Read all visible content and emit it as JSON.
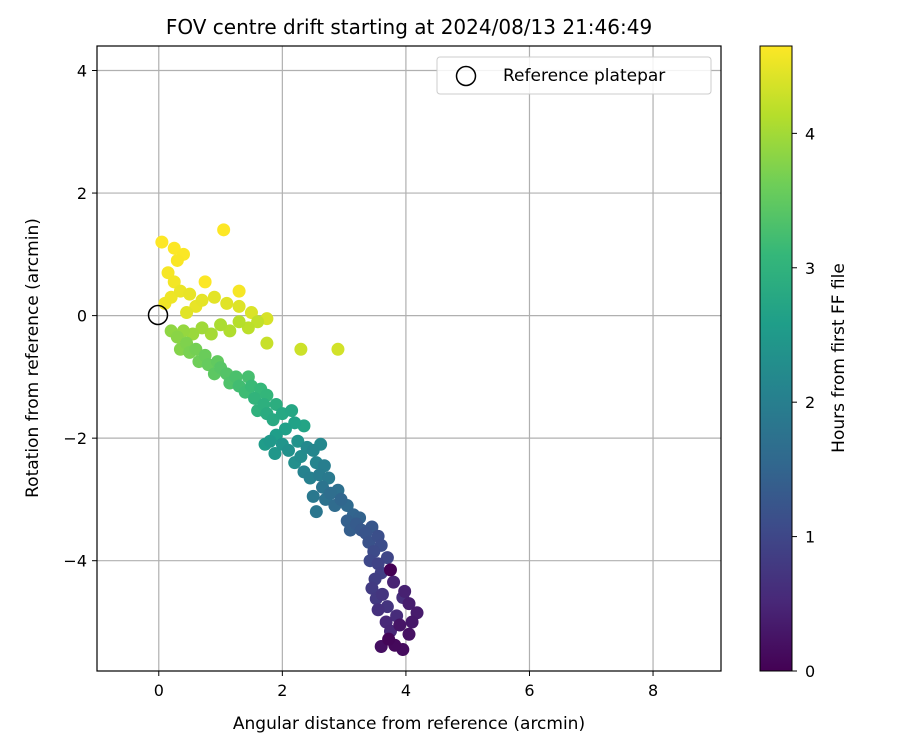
{
  "chart_data": {
    "type": "scatter",
    "title": "FOV centre drift starting at 2024/08/13 21:46:49",
    "xlabel": "Angular distance from reference (arcmin)",
    "ylabel": "Rotation from reference (arcmin)",
    "xlim": [
      -1.0,
      9.1
    ],
    "ylim": [
      -5.8,
      4.4
    ],
    "xticks": [
      0,
      2,
      4,
      6,
      8
    ],
    "xtick_labels": [
      "0",
      "2",
      "4",
      "6",
      "8"
    ],
    "yticks": [
      -4,
      -2,
      0,
      2,
      4
    ],
    "ytick_labels": [
      "−4",
      "−2",
      "0",
      "2",
      "4"
    ],
    "grid": true,
    "legend": {
      "placement": "top-right",
      "entries": [
        "Reference platepar"
      ]
    },
    "reference_point": {
      "name": "Reference platepar",
      "x": 0,
      "y": 0
    },
    "colorbar": {
      "label": "Hours from first FF file",
      "range": [
        0,
        4.65
      ],
      "ticks": [
        0,
        1,
        2,
        3,
        4
      ],
      "tick_labels": [
        "0",
        "1",
        "2",
        "3",
        "4"
      ],
      "colormap": "viridis"
    },
    "colormap_stops": [
      "#440154",
      "#482878",
      "#3e4989",
      "#31688e",
      "#26828e",
      "#1f9e89",
      "#35b779",
      "#6ece58",
      "#b5de2b",
      "#fde725"
    ],
    "points": [
      [
        3.75,
        -4.15,
        0.0
      ],
      [
        3.72,
        -5.28,
        0.06
      ],
      [
        3.82,
        -5.38,
        0.1
      ],
      [
        3.95,
        -5.45,
        0.14
      ],
      [
        3.6,
        -5.4,
        0.18
      ],
      [
        4.05,
        -5.2,
        0.22
      ],
      [
        3.9,
        -5.05,
        0.26
      ],
      [
        4.1,
        -5.0,
        0.3
      ],
      [
        4.18,
        -4.85,
        0.34
      ],
      [
        4.05,
        -4.7,
        0.38
      ],
      [
        3.98,
        -4.5,
        0.42
      ],
      [
        3.8,
        -4.35,
        0.46
      ],
      [
        3.75,
        -5.15,
        0.5
      ],
      [
        3.68,
        -5.0,
        0.54
      ],
      [
        3.85,
        -4.9,
        0.58
      ],
      [
        3.95,
        -4.6,
        0.62
      ],
      [
        3.55,
        -4.8,
        0.66
      ],
      [
        3.7,
        -4.75,
        0.7
      ],
      [
        3.62,
        -4.55,
        0.74
      ],
      [
        3.52,
        -4.62,
        0.78
      ],
      [
        3.45,
        -4.45,
        0.82
      ],
      [
        3.5,
        -4.3,
        0.86
      ],
      [
        3.6,
        -4.2,
        0.9
      ],
      [
        3.55,
        -4.05,
        0.94
      ],
      [
        3.7,
        -3.95,
        0.98
      ],
      [
        3.42,
        -4.0,
        1.02
      ],
      [
        3.48,
        -3.85,
        1.06
      ],
      [
        3.6,
        -3.75,
        1.1
      ],
      [
        3.55,
        -3.6,
        1.14
      ],
      [
        3.4,
        -3.7,
        1.18
      ],
      [
        3.35,
        -3.55,
        1.22
      ],
      [
        3.45,
        -3.45,
        1.26
      ],
      [
        3.28,
        -3.5,
        1.3
      ],
      [
        3.2,
        -3.4,
        1.34
      ],
      [
        3.1,
        -3.5,
        1.38
      ],
      [
        3.05,
        -3.35,
        1.42
      ],
      [
        3.25,
        -3.3,
        1.46
      ],
      [
        3.15,
        -3.25,
        1.5
      ],
      [
        2.95,
        -3.0,
        1.54
      ],
      [
        3.05,
        -3.1,
        1.58
      ],
      [
        2.85,
        -3.1,
        1.62
      ],
      [
        2.78,
        -2.9,
        1.66
      ],
      [
        2.9,
        -2.85,
        1.7
      ],
      [
        2.7,
        -3.0,
        1.74
      ],
      [
        2.65,
        -2.8,
        1.78
      ],
      [
        2.55,
        -3.2,
        1.82
      ],
      [
        2.5,
        -2.95,
        1.86
      ],
      [
        2.75,
        -2.65,
        1.9
      ],
      [
        2.6,
        -2.6,
        1.94
      ],
      [
        2.68,
        -2.45,
        1.98
      ],
      [
        2.45,
        -2.65,
        2.02
      ],
      [
        2.35,
        -2.55,
        2.06
      ],
      [
        2.55,
        -2.4,
        2.1
      ],
      [
        2.5,
        -2.2,
        2.14
      ],
      [
        2.62,
        -2.1,
        2.18
      ],
      [
        2.4,
        -2.15,
        2.22
      ],
      [
        2.3,
        -2.3,
        2.26
      ],
      [
        2.2,
        -2.4,
        2.3
      ],
      [
        2.1,
        -2.2,
        2.34
      ],
      [
        2.25,
        -2.05,
        2.38
      ],
      [
        2.0,
        -2.1,
        2.42
      ],
      [
        1.88,
        -2.25,
        2.46
      ],
      [
        1.8,
        -2.05,
        2.5
      ],
      [
        1.72,
        -2.1,
        2.54
      ],
      [
        1.9,
        -1.95,
        2.58
      ],
      [
        2.05,
        -1.85,
        2.62
      ],
      [
        2.2,
        -1.75,
        2.66
      ],
      [
        2.35,
        -1.8,
        2.7
      ],
      [
        2.15,
        -1.55,
        2.74
      ],
      [
        2.0,
        -1.6,
        2.78
      ],
      [
        1.85,
        -1.7,
        2.82
      ],
      [
        1.75,
        -1.6,
        2.86
      ],
      [
        1.9,
        -1.45,
        2.9
      ],
      [
        1.7,
        -1.45,
        2.94
      ],
      [
        1.6,
        -1.55,
        2.98
      ],
      [
        1.55,
        -1.35,
        3.02
      ],
      [
        1.75,
        -1.3,
        3.06
      ],
      [
        1.65,
        -1.2,
        3.1
      ],
      [
        1.5,
        -1.15,
        3.14
      ],
      [
        1.4,
        -1.25,
        3.18
      ],
      [
        1.3,
        -1.15,
        3.22
      ],
      [
        1.45,
        -1.0,
        3.26
      ],
      [
        1.25,
        -1.0,
        3.3
      ],
      [
        1.15,
        -1.1,
        3.34
      ],
      [
        1.1,
        -0.95,
        3.38
      ],
      [
        1.0,
        -0.85,
        3.42
      ],
      [
        0.9,
        -0.95,
        3.46
      ],
      [
        0.95,
        -0.75,
        3.5
      ],
      [
        0.8,
        -0.8,
        3.54
      ],
      [
        0.75,
        -0.65,
        3.58
      ],
      [
        0.65,
        -0.75,
        3.62
      ],
      [
        0.6,
        -0.55,
        3.66
      ],
      [
        0.5,
        -0.6,
        3.7
      ],
      [
        0.45,
        -0.45,
        3.74
      ],
      [
        0.35,
        -0.55,
        3.78
      ],
      [
        0.3,
        -0.35,
        3.82
      ],
      [
        0.2,
        -0.25,
        3.86
      ],
      [
        0.4,
        -0.25,
        3.9
      ],
      [
        0.55,
        -0.3,
        3.94
      ],
      [
        0.7,
        -0.2,
        3.98
      ],
      [
        0.85,
        -0.3,
        4.02
      ],
      [
        1.0,
        -0.15,
        4.06
      ],
      [
        1.15,
        -0.25,
        4.1
      ],
      [
        1.3,
        -0.1,
        4.14
      ],
      [
        1.45,
        -0.2,
        4.18
      ],
      [
        1.6,
        -0.1,
        4.22
      ],
      [
        1.75,
        -0.45,
        4.26
      ],
      [
        2.3,
        -0.55,
        4.3
      ],
      [
        2.9,
        -0.55,
        4.34
      ],
      [
        1.75,
        -0.05,
        4.38
      ],
      [
        1.5,
        0.05,
        4.4
      ],
      [
        1.3,
        0.15,
        4.42
      ],
      [
        1.1,
        0.2,
        4.44
      ],
      [
        0.9,
        0.3,
        4.46
      ],
      [
        0.7,
        0.25,
        4.48
      ],
      [
        0.5,
        0.35,
        4.5
      ],
      [
        0.35,
        0.4,
        4.52
      ],
      [
        0.2,
        0.3,
        4.54
      ],
      [
        0.1,
        0.2,
        4.56
      ],
      [
        0.25,
        0.55,
        4.58
      ],
      [
        0.15,
        0.7,
        4.6
      ],
      [
        0.3,
        0.9,
        4.62
      ],
      [
        0.4,
        1.0,
        4.63
      ],
      [
        0.25,
        1.1,
        4.64
      ],
      [
        0.05,
        1.2,
        4.65
      ],
      [
        1.05,
        1.4,
        4.65
      ],
      [
        0.75,
        0.55,
        4.64
      ],
      [
        1.3,
        0.4,
        4.6
      ],
      [
        0.6,
        0.15,
        4.5
      ],
      [
        0.45,
        0.05,
        4.45
      ]
    ]
  }
}
